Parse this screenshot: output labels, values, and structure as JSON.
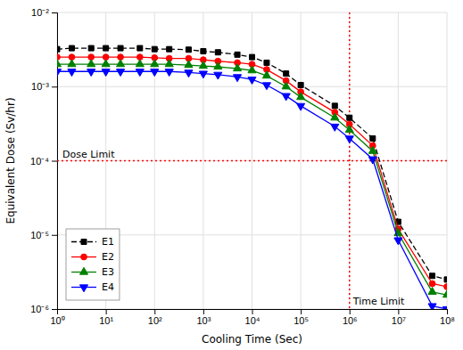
{
  "chart_data": {
    "type": "line",
    "xlabel": "Cooling Time (Sec)",
    "ylabel": "Equivalent Dose (Sv/hr)",
    "log": true,
    "grid": true,
    "legend": "lower left",
    "xlim": [
      1,
      100000000
    ],
    "ylim": [
      1e-06,
      0.01
    ],
    "xticks": [
      {
        "value": 1,
        "label": "10⁰"
      },
      {
        "value": 10,
        "label": "10¹"
      },
      {
        "value": 100,
        "label": "10²"
      },
      {
        "value": 1000,
        "label": "10³"
      },
      {
        "value": 10000,
        "label": "10⁴"
      },
      {
        "value": 100000,
        "label": "10⁵"
      },
      {
        "value": 1000000,
        "label": "10⁶"
      },
      {
        "value": 10000000,
        "label": "10⁷"
      },
      {
        "value": 100000000,
        "label": "10⁸"
      }
    ],
    "yticks": [
      {
        "value": 1e-06,
        "label": "10⁻⁶"
      },
      {
        "value": 1e-05,
        "label": "10⁻⁵"
      },
      {
        "value": 0.0001,
        "label": "10⁻⁴"
      },
      {
        "value": 0.001,
        "label": "10⁻³"
      },
      {
        "value": 0.01,
        "label": "10⁻²"
      }
    ],
    "x": [
      1,
      2,
      5,
      10,
      20,
      50,
      100,
      200,
      500,
      1000,
      2000,
      5000,
      10000,
      20000,
      50000,
      100000,
      500000,
      1000000,
      3000000,
      10000000,
      50000000,
      100000000
    ],
    "series": [
      {
        "name": "E1",
        "color": "black",
        "marker": "square",
        "line_style": "dashed",
        "values": [
          0.0032,
          0.0033,
          0.0033,
          0.0033,
          0.0033,
          0.0033,
          0.0032,
          0.0032,
          0.00315,
          0.003,
          0.0029,
          0.0027,
          0.0025,
          0.0021,
          0.0015,
          0.00105,
          0.00055,
          0.00038,
          0.0002,
          1.5e-05,
          2.8e-06,
          2.5e-06
        ]
      },
      {
        "name": "E2",
        "color": "red",
        "marker": "circle",
        "line_style": "solid",
        "values": [
          0.0025,
          0.0025,
          0.0025,
          0.0025,
          0.0025,
          0.0025,
          0.00245,
          0.0024,
          0.0024,
          0.0023,
          0.0022,
          0.0021,
          0.002,
          0.0017,
          0.0012,
          0.00085,
          0.00045,
          0.00031,
          0.00016,
          1.2e-05,
          2.2e-06,
          2e-06
        ]
      },
      {
        "name": "E3",
        "color": "green",
        "marker": "triangle-up",
        "line_style": "solid",
        "values": [
          0.002,
          0.002,
          0.002,
          0.002,
          0.002,
          0.002,
          0.002,
          0.002,
          0.00195,
          0.0019,
          0.00185,
          0.00175,
          0.00165,
          0.0014,
          0.001,
          0.00072,
          0.00038,
          0.00026,
          0.000135,
          1.05e-05,
          1.7e-06,
          1.55e-06
        ]
      },
      {
        "name": "E4",
        "color": "blue",
        "marker": "triangle-down",
        "line_style": "solid",
        "values": [
          0.0016,
          0.0016,
          0.0016,
          0.0016,
          0.0016,
          0.0016,
          0.0016,
          0.0016,
          0.00155,
          0.0015,
          0.00145,
          0.00135,
          0.00125,
          0.00105,
          0.00075,
          0.00055,
          0.00029,
          0.0002,
          0.000105,
          8.5e-06,
          1.1e-06,
          1e-06
        ]
      }
    ],
    "annotations": [
      {
        "text": "Dose Limit",
        "y": 0.0001,
        "color": "red",
        "line_style": "dotted"
      },
      {
        "text": "Time Limit",
        "x": 1000000,
        "color": "red",
        "line_style": "dotted"
      }
    ]
  }
}
